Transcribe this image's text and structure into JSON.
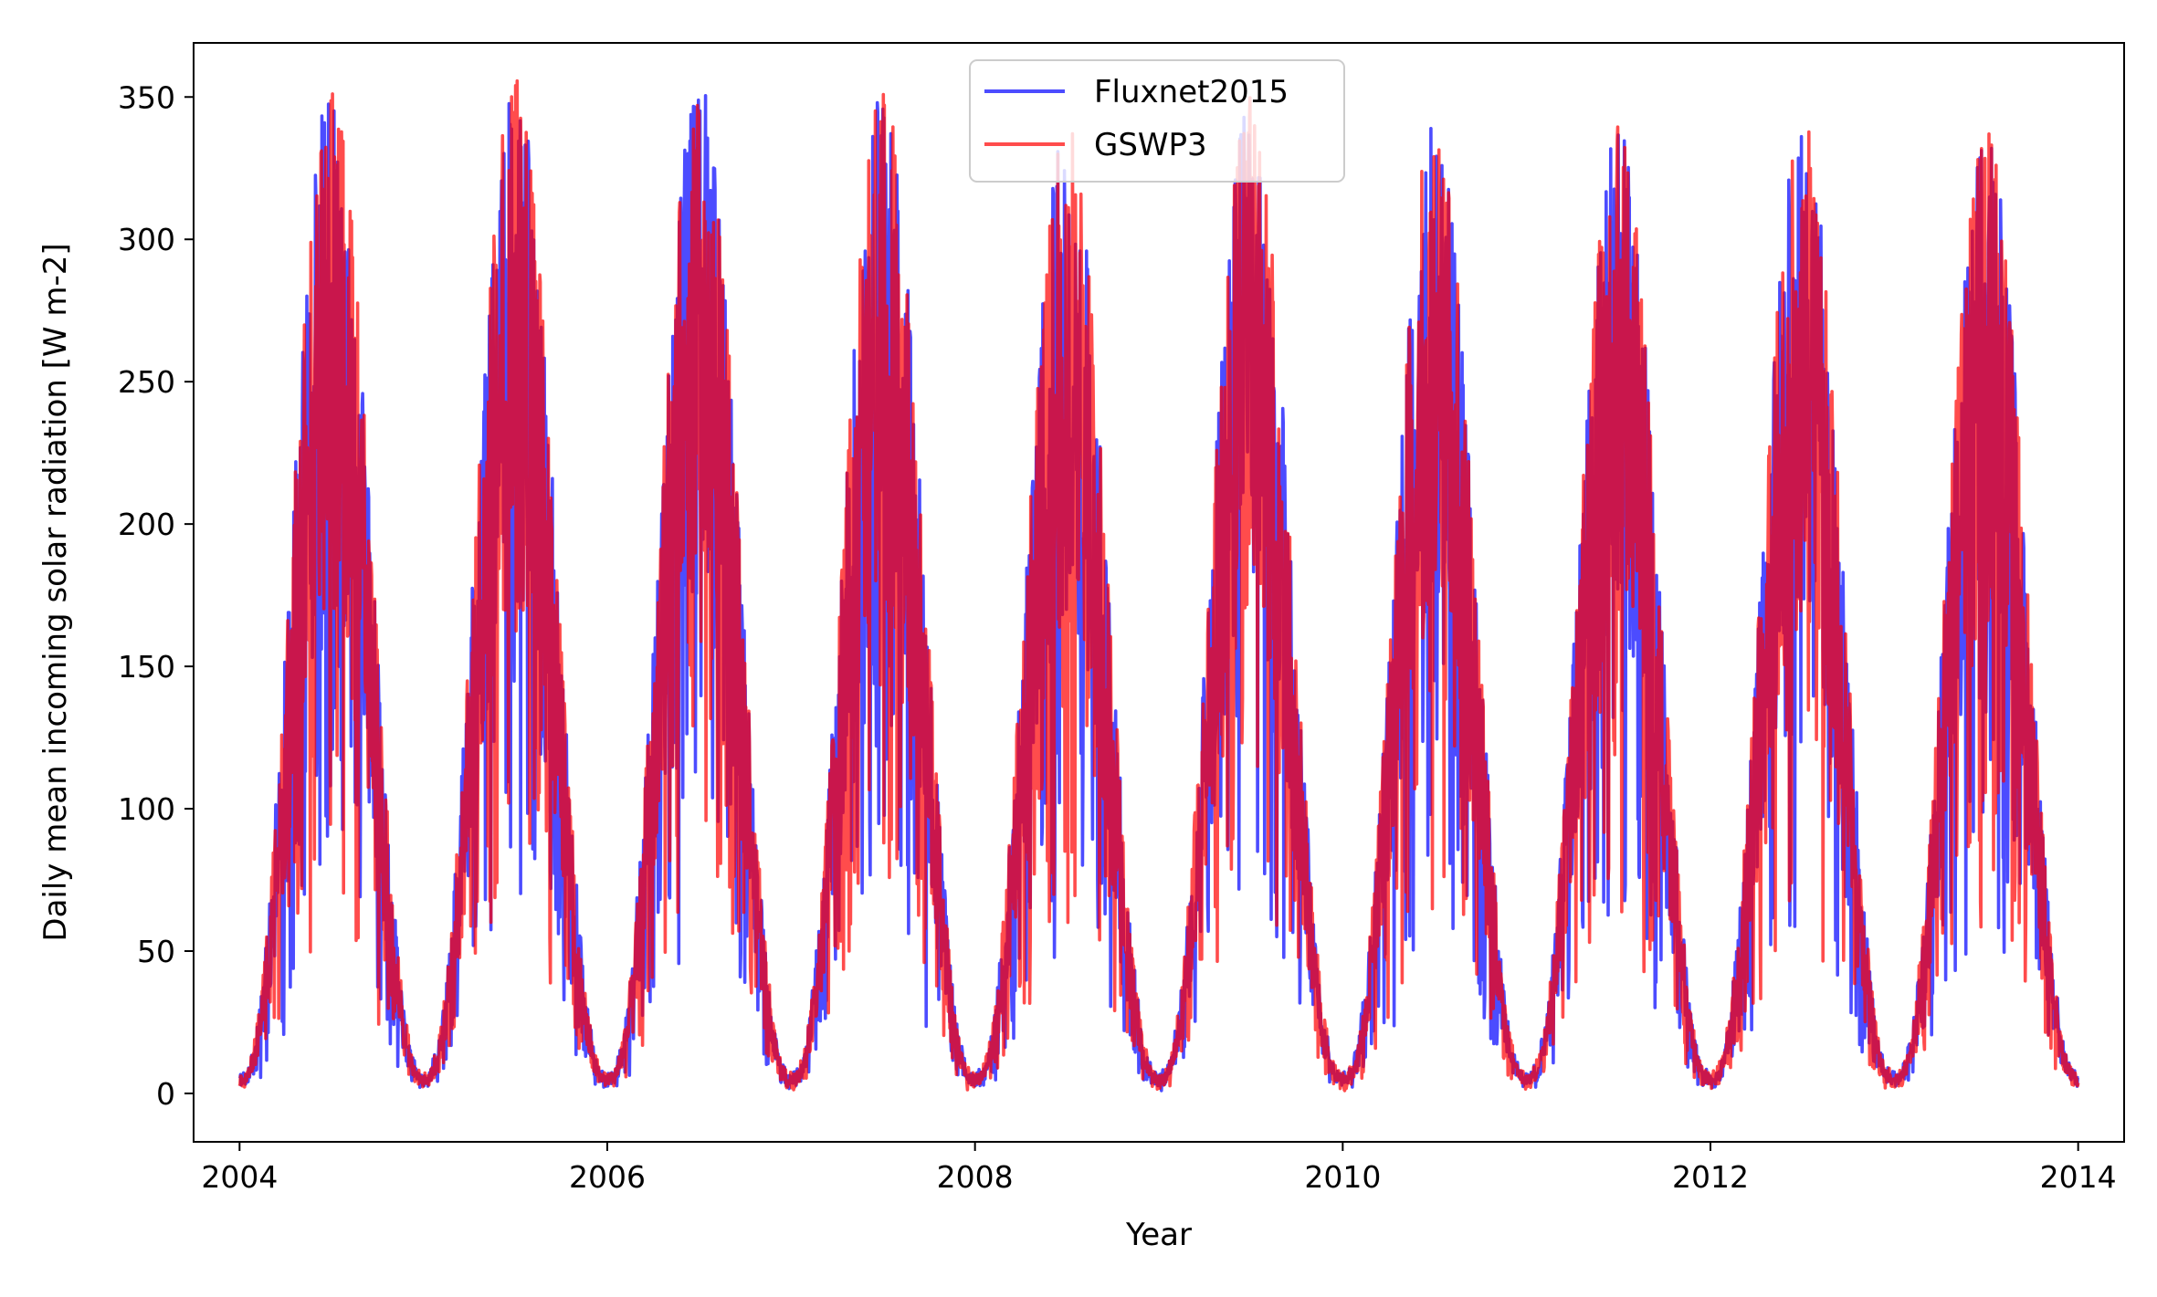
{
  "chart_data": {
    "type": "line",
    "title": "",
    "xlabel": "Year",
    "ylabel": "Daily mean incoming solar radiation [W m-2]",
    "xlim": [
      2003.75,
      2014.25
    ],
    "ylim": [
      -17,
      369
    ],
    "x_ticks": [
      2004,
      2006,
      2008,
      2010,
      2012,
      2014
    ],
    "x_tick_labels": [
      "2004",
      "2006",
      "2008",
      "2010",
      "2012",
      "2014"
    ],
    "y_ticks": [
      0,
      50,
      100,
      150,
      200,
      250,
      300,
      350
    ],
    "y_tick_labels": [
      "0",
      "50",
      "100",
      "150",
      "200",
      "250",
      "300",
      "350"
    ],
    "grid": false,
    "legend": {
      "placement": "top-center"
    },
    "x_range": {
      "start": "2004-01-01",
      "end": "2014-01-01",
      "step": "1 day"
    },
    "seasonal_envelope": {
      "years": [
        2004,
        2005,
        2006,
        2007,
        2008,
        2009,
        2010,
        2011,
        2012,
        2013
      ],
      "winter_min": 3,
      "summer_peak_max": [
        350,
        352,
        352,
        348,
        336,
        345,
        338,
        335,
        339,
        333
      ]
    },
    "series": [
      {
        "name": "Fluxnet2015",
        "color": "#0000ff",
        "alpha": 0.7,
        "seed": 11
      },
      {
        "name": "GSWP3",
        "color": "#ff0000",
        "alpha": 0.7,
        "seed": 29
      }
    ]
  }
}
